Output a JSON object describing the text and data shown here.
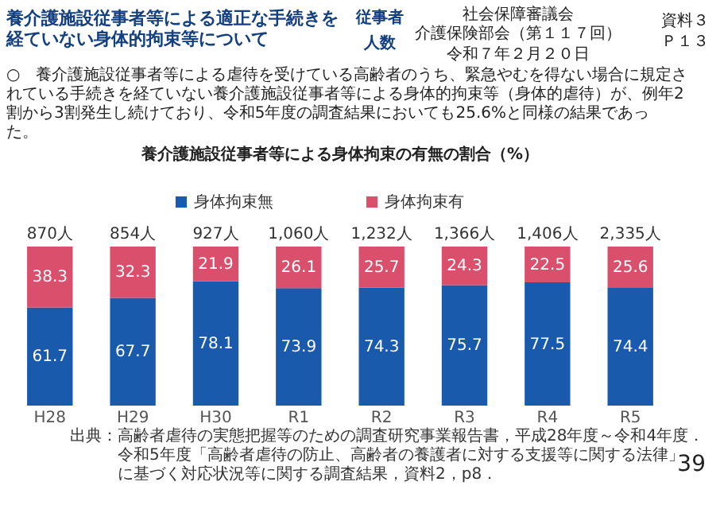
{
  "chart_data": {
    "type": "bar",
    "title": "養介護施設従事者等による身体拘束の有無の割合（%）",
    "categories": [
      "H28",
      "H29",
      "H30",
      "R1",
      "R2",
      "R3",
      "R4",
      "R5"
    ],
    "stacked": true,
    "series": [
      {
        "name": "身体拘束無",
        "color": "#1a5aad",
        "values": [
          61.7,
          67.7,
          78.1,
          73.9,
          74.3,
          75.7,
          77.5,
          74.4
        ]
      },
      {
        "name": "身体拘束有",
        "color": "#d94f6c",
        "values": [
          38.3,
          32.3,
          21.9,
          26.1,
          25.7,
          24.3,
          22.5,
          25.6
        ]
      }
    ],
    "data_labels": true,
    "legend": "top",
    "grid": false,
    "tick_labels": "x",
    "annotations": [
      {
        "text": "870人",
        "x": "H28",
        "y": 100
      },
      {
        "text": "854人",
        "x": "H29",
        "y": 100
      },
      {
        "text": "927人",
        "x": "H30",
        "y": 100
      },
      {
        "text": "1,060人",
        "x": "R1",
        "y": 100
      },
      {
        "text": "1,232人",
        "x": "R2",
        "y": 100
      },
      {
        "text": "1,366人",
        "x": "R3",
        "y": 100
      },
      {
        "text": "1,406人",
        "x": "R4",
        "y": 100
      },
      {
        "text": "2,335人",
        "x": "R5",
        "y": 100
      },
      "養介護施設従事者等による適正な手続きを経ていない身体的拘束等について",
      "従事者",
      "人数",
      "社会保障審議会",
      "介護保険部会（第１１７回）",
      "令和７年２月２０日",
      "資料３",
      "Ｐ１３",
      "○　養介護施設従事者等による虐待を受けている高齢者のうち、緊急やむを得ない場合に規定されている手続きを経ていない養介護施設従事者等による身体的拘束等（身体的虐待）が、例年2割から3割発生し続けており、令和5年度の調査結果においても25.6%と同様の結果であった。",
      "出典：高齢者虐待の実態把握等のための調査研究事業報告書，平成28年度～令和4年度．",
      "令和5年度「高齢者虐待の防止、高齢者の養護者に対する支援等に関する法律」に基づく対応状況等に関する調査結果，資料2，p8．",
      "39"
    ]
  }
}
